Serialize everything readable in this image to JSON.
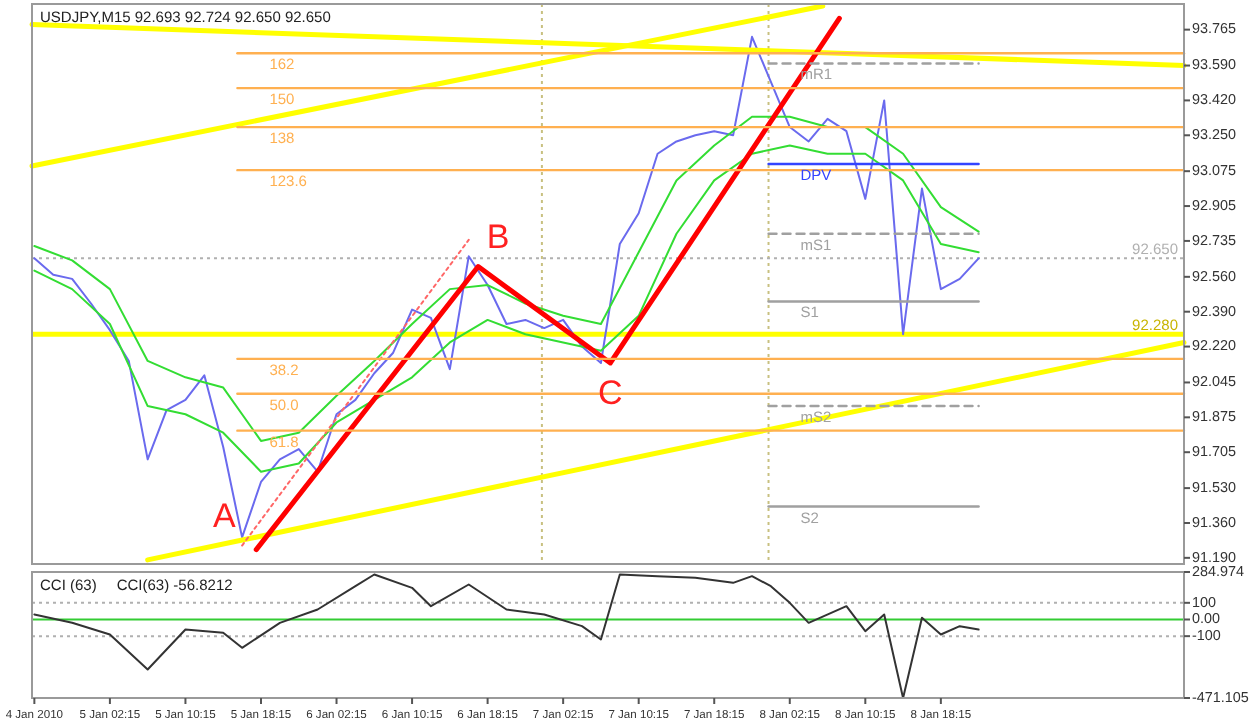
{
  "chart_data": [
    {
      "type": "line",
      "title": "USDJPY,M15  92.693 92.724 92.650 92.650",
      "xlim": [
        "2010-01-04T18:00",
        "2010-01-09T20:00"
      ],
      "ylim": [
        91.16,
        93.89
      ],
      "yticks": [
        93.765,
        {
          "value": 93.59,
          "label": "93.590"
        },
        {
          "value": 93.42,
          "label": "93.420"
        },
        {
          "value": 93.25,
          "label": "93.250"
        },
        93.075,
        92.905,
        92.735,
        {
          "value": 92.56,
          "label": "92.560"
        },
        {
          "value": 92.39,
          "label": "92.390"
        },
        {
          "value": 92.22,
          "label": "92.220"
        },
        92.045,
        91.875,
        91.705,
        {
          "value": 91.53,
          "label": "91.530"
        },
        {
          "value": 91.36,
          "label": "91.360"
        },
        {
          "value": 91.19,
          "label": "91.190"
        }
      ],
      "tick_labels": "y",
      "x": [
        "2010-01-04T18:15",
        "2010-01-04T20:15",
        "2010-01-04T22:15",
        "2010-01-05T00:15",
        "2010-01-05T02:15",
        "2010-01-05T04:15",
        "2010-01-05T06:15",
        "2010-01-05T08:15",
        "2010-01-05T10:15",
        "2010-01-05T12:15",
        "2010-01-05T14:15",
        "2010-01-05T16:15",
        "2010-01-05T18:15",
        "2010-01-05T20:15",
        "2010-01-05T22:15",
        "2010-01-06T00:15",
        "2010-01-06T02:15",
        "2010-01-06T04:15",
        "2010-01-06T06:15",
        "2010-01-06T08:15",
        "2010-01-06T10:15",
        "2010-01-06T12:15",
        "2010-01-06T14:15",
        "2010-01-06T16:15",
        "2010-01-06T18:15",
        "2010-01-06T20:15",
        "2010-01-06T22:15",
        "2010-01-07T00:15",
        "2010-01-07T02:15",
        "2010-01-07T04:15",
        "2010-01-07T06:15",
        "2010-01-07T08:15",
        "2010-01-07T10:15",
        "2010-01-07T12:15",
        "2010-01-07T14:15",
        "2010-01-07T16:15",
        "2010-01-07T18:15",
        "2010-01-07T20:15",
        "2010-01-07T22:15",
        "2010-01-08T00:15",
        "2010-01-08T02:15",
        "2010-01-08T04:15",
        "2010-01-08T06:15",
        "2010-01-08T08:15",
        "2010-01-08T10:15",
        "2010-01-08T12:15",
        "2010-01-08T14:15",
        "2010-01-08T16:15",
        "2010-01-08T18:15",
        "2010-01-08T20:15",
        "2010-01-08T22:15"
      ],
      "series": [
        {
          "color": "#6a6aee",
          "values": [
            92.65,
            92.57,
            92.55,
            92.43,
            92.3,
            92.15,
            91.67,
            91.91,
            91.96,
            92.08,
            91.73,
            91.29,
            91.56,
            91.67,
            91.72,
            91.61,
            91.89,
            91.96,
            92.09,
            92.19,
            92.4,
            92.36,
            92.11,
            92.66,
            92.52,
            92.33,
            92.35,
            92.31,
            92.35,
            92.22,
            92.14,
            92.72,
            92.87,
            93.16,
            93.22,
            93.25,
            93.27,
            93.25,
            93.73,
            93.51,
            93.29,
            93.22,
            93.33,
            93.27,
            92.94,
            93.42,
            92.28,
            92.99,
            92.5,
            92.55,
            92.65
          ]
        },
        {
          "color": "#33dd33",
          "x": [
            "2010-01-04T18:15",
            "2010-01-04T22:15",
            "2010-01-05T02:15",
            "2010-01-05T06:15",
            "2010-01-05T10:15",
            "2010-01-05T14:15",
            "2010-01-05T18:15",
            "2010-01-05T22:15",
            "2010-01-06T02:15",
            "2010-01-06T06:15",
            "2010-01-06T10:15",
            "2010-01-06T14:15",
            "2010-01-06T18:15",
            "2010-01-06T22:15",
            "2010-01-07T02:15",
            "2010-01-07T06:15",
            "2010-01-07T10:15",
            "2010-01-07T14:15",
            "2010-01-07T18:15",
            "2010-01-07T22:15",
            "2010-01-08T02:15",
            "2010-01-08T06:15",
            "2010-01-08T10:15",
            "2010-01-08T14:15",
            "2010-01-08T18:15",
            "2010-01-08T22:15"
          ],
          "values": [
            92.71,
            92.64,
            92.5,
            92.15,
            92.07,
            92.02,
            91.76,
            91.8,
            91.98,
            92.15,
            92.33,
            92.5,
            92.52,
            92.43,
            92.37,
            92.33,
            92.68,
            93.03,
            93.2,
            93.34,
            93.34,
            93.29,
            93.29,
            93.16,
            92.9,
            92.78
          ]
        },
        {
          "color": "#33dd33",
          "x": [
            "2010-01-04T18:15",
            "2010-01-04T22:15",
            "2010-01-05T02:15",
            "2010-01-05T06:15",
            "2010-01-05T10:15",
            "2010-01-05T14:15",
            "2010-01-05T18:15",
            "2010-01-05T22:15",
            "2010-01-06T02:15",
            "2010-01-06T06:15",
            "2010-01-06T10:15",
            "2010-01-06T14:15",
            "2010-01-06T18:15",
            "2010-01-06T22:15",
            "2010-01-07T02:15",
            "2010-01-07T06:15",
            "2010-01-07T10:15",
            "2010-01-07T14:15",
            "2010-01-07T18:15",
            "2010-01-07T22:15",
            "2010-01-08T02:15",
            "2010-01-08T06:15",
            "2010-01-08T10:15",
            "2010-01-08T14:15",
            "2010-01-08T18:15",
            "2010-01-08T22:15"
          ],
          "values": [
            92.59,
            92.5,
            92.33,
            91.93,
            91.89,
            91.8,
            91.61,
            91.65,
            91.85,
            91.96,
            92.07,
            92.24,
            92.35,
            92.28,
            92.24,
            92.2,
            92.37,
            92.77,
            93.03,
            93.16,
            93.2,
            93.16,
            93.16,
            93.03,
            92.72,
            92.68
          ]
        },
        {
          "color": "#ffff00",
          "x": [
            "2010-01-04T18:00",
            "2010-01-09T20:00"
          ],
          "values": [
            93.79,
            93.59
          ]
        },
        {
          "color": "#ffff00",
          "x": [
            "2010-01-04T18:00",
            "2010-01-08T05:45"
          ],
          "values": [
            93.1,
            93.88
          ]
        },
        {
          "color": "#ffff00",
          "x": [
            "2010-01-05T06:15",
            "2010-01-09T20:00"
          ],
          "values": [
            91.18,
            92.24
          ]
        },
        {
          "color": "#ff0000",
          "x": [
            "2010-01-05T17:45",
            "2010-01-06T17:15",
            "2010-01-07T07:15",
            "2010-01-08T07:30"
          ],
          "values": [
            91.23,
            92.61,
            92.14,
            93.82
          ]
        },
        {
          "color": "#ff6666",
          "line_style": "dotted",
          "x": [
            "2010-01-05T16:15",
            "2010-01-06T16:15"
          ],
          "values": [
            91.25,
            92.74
          ]
        },
        {
          "name": "162",
          "color": "#ffb050",
          "x": [
            "2010-01-05T15:45",
            "2010-01-09T20:00"
          ],
          "values": [
            93.65,
            93.65
          ]
        },
        {
          "name": "150",
          "color": "#ffb050",
          "x": [
            "2010-01-05T15:45",
            "2010-01-09T20:00"
          ],
          "values": [
            93.48,
            93.48
          ]
        },
        {
          "name": "138",
          "color": "#ffb050",
          "x": [
            "2010-01-05T15:45",
            "2010-01-09T20:00"
          ],
          "values": [
            93.29,
            93.29
          ]
        },
        {
          "name": "123.6",
          "color": "#ffb050",
          "x": [
            "2010-01-05T15:45",
            "2010-01-09T20:00"
          ],
          "values": [
            93.08,
            93.08
          ]
        },
        {
          "name": "38.2",
          "color": "#ffb050",
          "x": [
            "2010-01-05T15:45",
            "2010-01-09T20:00"
          ],
          "values": [
            92.16,
            92.16
          ]
        },
        {
          "name": "50.0",
          "color": "#ffb050",
          "x": [
            "2010-01-05T15:45",
            "2010-01-09T20:00"
          ],
          "values": [
            91.99,
            91.99
          ]
        },
        {
          "name": "61.8",
          "color": "#ffb050",
          "x": [
            "2010-01-05T15:45",
            "2010-01-09T20:00"
          ],
          "values": [
            91.81,
            91.81
          ]
        },
        {
          "name": "mR1",
          "color": "#a0a0a0",
          "line_style": "dashed",
          "x": [
            "2010-01-08T00:00",
            "2010-01-08T22:15"
          ],
          "values": [
            93.6,
            93.6
          ]
        },
        {
          "name": "DPV",
          "color": "#3344ff",
          "x": [
            "2010-01-08T00:00",
            "2010-01-08T22:15"
          ],
          "values": [
            93.11,
            93.11
          ]
        },
        {
          "name": "mS1",
          "color": "#a0a0a0",
          "line_style": "dashed",
          "x": [
            "2010-01-08T00:00",
            "2010-01-08T22:15"
          ],
          "values": [
            92.77,
            92.77
          ]
        },
        {
          "name": "S1",
          "color": "#a0a0a0",
          "x": [
            "2010-01-08T00:00",
            "2010-01-08T22:15"
          ],
          "values": [
            92.44,
            92.44
          ]
        },
        {
          "name": "mS2",
          "color": "#a0a0a0",
          "line_style": "dashed",
          "x": [
            "2010-01-08T00:00",
            "2010-01-08T22:15"
          ],
          "values": [
            91.93,
            91.93
          ]
        },
        {
          "name": "S2",
          "color": "#a0a0a0",
          "x": [
            "2010-01-08T00:00",
            "2010-01-08T22:15"
          ],
          "values": [
            91.44,
            91.44
          ]
        }
      ],
      "ref_lines": [
        {
          "axis": "y",
          "value": 92.65,
          "label": "92.650",
          "color": "#b0b0b0",
          "line_style": "dotted"
        },
        {
          "axis": "y",
          "value": 92.28,
          "label": "92.280",
          "color": "#ffff00"
        },
        {
          "axis": "x",
          "value": "2010-01-07T00:00",
          "color": "#c8c080",
          "line_style": "dotted"
        },
        {
          "axis": "x",
          "value": "2010-01-08T00:00",
          "color": "#c8c080",
          "line_style": "dotted"
        }
      ],
      "annotations": [
        {
          "text": "A",
          "x": "2010-01-05T17:45",
          "y": 91.23
        },
        {
          "text": "B",
          "x": "2010-01-06T17:15",
          "y": 92.61
        },
        {
          "text": "C",
          "x": "2010-01-07T07:15",
          "y": 92.14
        }
      ]
    },
    {
      "type": "line",
      "title": "CCI (63)",
      "subtitle": "CCI(63) -56.8212",
      "xlim": [
        "2010-01-04T18:00",
        "2010-01-09T20:00"
      ],
      "xticks": [
        {
          "value": "2010-01-04T18:15",
          "label": "4 Jan 2010"
        },
        {
          "value": "2010-01-05T02:15",
          "label": "5 Jan 02:15"
        },
        {
          "value": "2010-01-05T10:15",
          "label": "5 Jan 10:15"
        },
        {
          "value": "2010-01-05T18:15",
          "label": "5 Jan 18:15"
        },
        {
          "value": "2010-01-06T02:15",
          "label": "6 Jan 02:15"
        },
        {
          "value": "2010-01-06T10:15",
          "label": "6 Jan 10:15"
        },
        {
          "value": "2010-01-06T18:15",
          "label": "6 Jan 18:15"
        },
        {
          "value": "2010-01-07T02:15",
          "label": "7 Jan 02:15"
        },
        {
          "value": "2010-01-07T10:15",
          "label": "7 Jan 10:15"
        },
        {
          "value": "2010-01-07T18:15",
          "label": "7 Jan 18:15"
        },
        {
          "value": "2010-01-08T02:15",
          "label": "8 Jan 02:15"
        },
        {
          "value": "2010-01-08T10:15",
          "label": "8 Jan 10:15"
        },
        {
          "value": "2010-01-08T18:15",
          "label": "8 Jan 18:15"
        }
      ],
      "ylim": [
        -471.105,
        284.974
      ],
      "yticks": [
        284.974,
        100,
        {
          "value": 0,
          "label": "0.00"
        },
        -100,
        -471.105
      ],
      "series": [
        {
          "color": "#333333",
          "x": [
            "2010-01-04T18:15",
            "2010-01-04T22:15",
            "2010-01-05T02:15",
            "2010-01-05T06:15",
            "2010-01-05T10:15",
            "2010-01-05T14:15",
            "2010-01-05T16:15",
            "2010-01-05T20:15",
            "2010-01-06T00:15",
            "2010-01-06T04:15",
            "2010-01-06T06:15",
            "2010-01-06T10:15",
            "2010-01-06T12:15",
            "2010-01-06T16:15",
            "2010-01-06T20:15",
            "2010-01-07T00:15",
            "2010-01-07T04:15",
            "2010-01-07T06:15",
            "2010-01-07T08:15",
            "2010-01-07T12:15",
            "2010-01-07T16:15",
            "2010-01-07T20:15",
            "2010-01-07T22:15",
            "2010-01-08T00:15",
            "2010-01-08T02:15",
            "2010-01-08T04:15",
            "2010-01-08T08:15",
            "2010-01-08T10:15",
            "2010-01-08T12:15",
            "2010-01-08T14:15",
            "2010-01-08T16:15",
            "2010-01-08T18:15",
            "2010-01-08T20:15",
            "2010-01-08T22:15"
          ],
          "values": [
            30,
            -20,
            -90,
            -300,
            -60,
            -80,
            -170,
            -20,
            60,
            200,
            270,
            190,
            80,
            210,
            60,
            30,
            -40,
            -120,
            270,
            260,
            250,
            220,
            260,
            200,
            100,
            -20,
            80,
            -70,
            30,
            -471,
            10,
            -90,
            -40,
            -60
          ]
        }
      ],
      "ref_lines": [
        {
          "axis": "y",
          "value": 0,
          "color": "#33cc33"
        },
        {
          "axis": "y",
          "value": 100,
          "color": "#b0b0b0",
          "line_style": "dotted"
        },
        {
          "axis": "y",
          "value": -100,
          "color": "#b0b0b0",
          "line_style": "dotted"
        }
      ]
    }
  ]
}
